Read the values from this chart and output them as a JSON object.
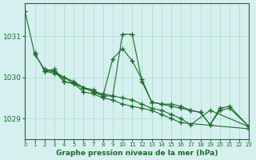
{
  "title": "Graphe pression niveau de la mer (hPa)",
  "bg_color": "#d6f0f0",
  "grid_color": "#aaddcc",
  "line_color": "#1a6b2a",
  "xlim": [
    0,
    23
  ],
  "ylim": [
    1028.5,
    1031.8
  ],
  "yticks": [
    1029,
    1030,
    1031
  ],
  "xticks": [
    0,
    1,
    2,
    3,
    4,
    5,
    6,
    7,
    8,
    9,
    10,
    11,
    12,
    13,
    14,
    15,
    16,
    17,
    18,
    19,
    20,
    21,
    22,
    23
  ],
  "series": [
    {
      "x": [
        0,
        1,
        2,
        3,
        4,
        5,
        6,
        7,
        8,
        9,
        10,
        11,
        12,
        13,
        14,
        15,
        16,
        17,
        18,
        19,
        20,
        21,
        23
      ],
      "y": [
        1031.6,
        1030.55,
        1030.2,
        1030.15,
        1030.0,
        1029.85,
        1029.75,
        1029.65,
        1029.55,
        1029.55,
        1031.05,
        1031.05,
        1029.9,
        1029.4,
        1029.35,
        1029.3,
        1029.25,
        1029.2,
        1029.15,
        1028.85,
        1029.25,
        1029.3,
        1028.8
      ]
    },
    {
      "x": [
        1,
        2,
        3,
        4,
        5,
        6,
        7,
        8,
        9,
        10,
        11,
        12,
        13,
        14,
        15,
        16,
        17,
        18,
        19,
        20,
        21,
        23
      ],
      "y": [
        1030.6,
        1030.15,
        1030.1,
        1030.0,
        1029.9,
        1029.75,
        1029.7,
        1029.55,
        1030.45,
        1030.7,
        1030.4,
        1029.95,
        1029.4,
        1029.35,
        1029.35,
        1029.3,
        1029.2,
        1029.15,
        1028.85,
        1029.2,
        1029.25,
        1028.8
      ]
    },
    {
      "x": [
        2,
        3,
        4,
        5,
        6,
        7,
        8,
        9,
        10,
        11,
        12,
        13,
        14,
        15,
        16,
        23
      ],
      "y": [
        1030.15,
        1030.2,
        1029.9,
        1029.85,
        1029.65,
        1029.6,
        1029.5,
        1029.45,
        1029.35,
        1029.3,
        1029.25,
        1029.2,
        1029.1,
        1029.0,
        1028.9,
        1028.75
      ]
    },
    {
      "x": [
        2,
        3,
        4,
        5,
        6,
        7,
        8,
        9,
        10,
        11,
        12,
        13,
        14,
        15,
        16,
        17,
        19,
        23
      ],
      "y": [
        1030.15,
        1030.15,
        1029.9,
        1029.85,
        1029.75,
        1029.65,
        1029.6,
        1029.55,
        1029.5,
        1029.45,
        1029.35,
        1029.25,
        1029.2,
        1029.1,
        1029.0,
        1028.85,
        1029.2,
        1028.8
      ]
    }
  ]
}
